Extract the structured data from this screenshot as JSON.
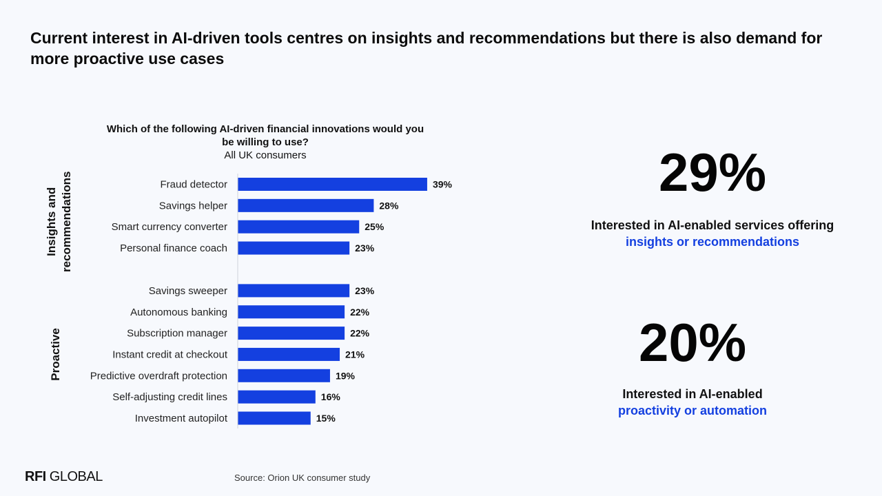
{
  "headline": "Current interest in AI-driven tools centres on insights and recommendations but there is also demand for more proactive use cases",
  "chart_data": {
    "type": "bar",
    "orientation": "horizontal",
    "title": "Which of the following AI-driven financial innovations would you be willing to use?",
    "subtitle": "All UK consumers",
    "bar_color": "#1440e0",
    "groups": [
      {
        "name": "Insights and recommendations",
        "categories": [
          "Fraud detector",
          "Savings helper",
          "Smart currency converter",
          "Personal finance coach"
        ],
        "values": [
          39,
          28,
          25,
          23
        ]
      },
      {
        "name": "Proactive",
        "categories": [
          "Savings sweeper",
          "Autonomous banking",
          "Subscription manager",
          "Instant credit at checkout",
          "Predictive overdraft protection",
          "Self-adjusting credit lines",
          "Investment autopilot"
        ],
        "values": [
          23,
          22,
          22,
          21,
          19,
          16,
          15
        ]
      }
    ],
    "value_suffix": "%"
  },
  "stats": [
    {
      "value": "29%",
      "text_before": "Interested in AI-enabled services offering ",
      "text_highlight": "insights or recommendations"
    },
    {
      "value": "20%",
      "text_before": "Interested in AI-enabled ",
      "text_highlight": "proactivity or automation"
    }
  ],
  "footer": {
    "logo_bold": "RFI",
    "logo_rest": "GLOBAL",
    "source": "Source: Orion UK consumer study"
  },
  "colors": {
    "accent": "#1440e0",
    "background": "#f7f9fd"
  }
}
